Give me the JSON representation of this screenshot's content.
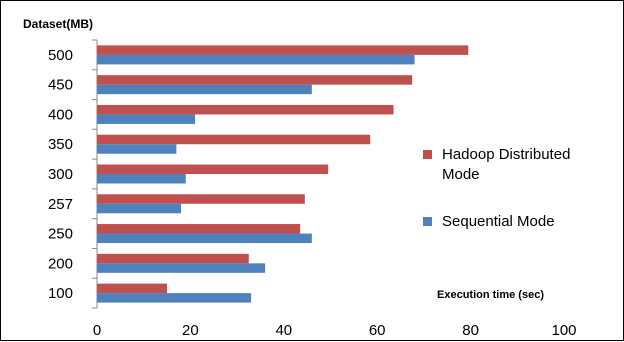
{
  "chart_data": {
    "type": "bar",
    "orientation": "horizontal",
    "ylabel": "Dataset(MB)",
    "xlabel": "Execution time (sec)",
    "categories": [
      "100",
      "200",
      "250",
      "257",
      "300",
      "350",
      "400",
      "450",
      "500"
    ],
    "series": [
      {
        "name": "Hadoop Distributed Mode",
        "color": "#C0504D",
        "values": [
          15,
          32.5,
          43.5,
          44.5,
          49.5,
          58.5,
          63.5,
          67.5,
          79.5
        ]
      },
      {
        "name": "Sequential Mode",
        "color": "#4F81BD",
        "values": [
          33,
          36,
          46,
          18,
          19,
          17,
          21,
          46,
          68
        ]
      }
    ],
    "xlim": [
      0,
      100
    ],
    "xticks": [
      0,
      20,
      40,
      60,
      80,
      100
    ],
    "legend_position": "right",
    "legend_entries": [
      {
        "lines": [
          "Hadoop Distributed",
          "Mode"
        ],
        "color": "#C0504D"
      },
      {
        "lines": [
          "Sequential Mode"
        ],
        "color": "#4F81BD"
      }
    ]
  }
}
